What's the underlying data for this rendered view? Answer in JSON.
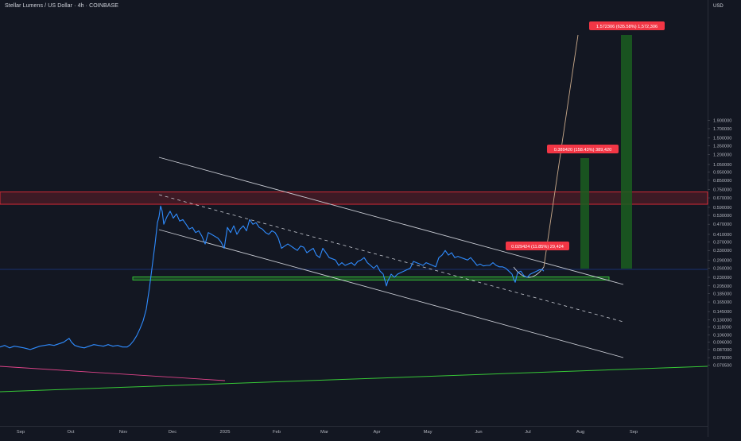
{
  "header": {
    "title": "Stellar Lumens / US Dollar · 4h · COINBASE",
    "currency": "USD"
  },
  "colors": {
    "background": "#131722",
    "price_line": "#2f8cff",
    "red_zone": "#ff2e3a",
    "green": "#37c837",
    "profit_bar": "#1b5e20",
    "label_red": "#f23645",
    "trend_lines": "#c8cbd3",
    "pink_line": "#e0448a",
    "blue_hline": "#2962ff",
    "projection": "#c9a98a"
  },
  "chart_data": {
    "type": "line",
    "y_scale": "log",
    "ylim": [
      0.068,
      2.2
    ],
    "x_ticks": [
      "Sep",
      "Oct",
      "Nov",
      "Dec",
      "2025",
      "Feb",
      "Mar",
      "Apr",
      "May",
      "Jun",
      "Jul",
      "Aug",
      "Sep"
    ],
    "y_ticks": [
      "0.070500",
      "0.078000",
      "0.087000",
      "0.096000",
      "0.106000",
      "0.118000",
      "0.130000",
      "0.145000",
      "0.165000",
      "0.185000",
      "0.205000",
      "0.230000",
      "0.260000",
      "0.290000",
      "0.330000",
      "0.370000",
      "0.410000",
      "0.470000",
      "0.530000",
      "0.590000",
      "0.670000",
      "0.750000",
      "0.850000",
      "0.950000",
      "1.050000",
      "1.200000",
      "1.350000",
      "1.500000",
      "1.700000",
      "1.900000"
    ],
    "series": [
      {
        "type": "line",
        "points": [
          [
            0,
            0.09
          ],
          [
            6,
            0.092
          ],
          [
            12,
            0.089
          ],
          [
            18,
            0.091
          ],
          [
            24,
            0.09
          ],
          [
            30,
            0.089
          ],
          [
            34,
            0.088
          ],
          [
            38,
            0.087
          ],
          [
            44,
            0.089
          ],
          [
            50,
            0.091
          ],
          [
            56,
            0.092
          ],
          [
            62,
            0.093
          ],
          [
            68,
            0.092
          ],
          [
            74,
            0.094
          ],
          [
            80,
            0.096
          ],
          [
            84,
            0.099
          ],
          [
            87,
            0.101
          ],
          [
            90,
            0.096
          ],
          [
            94,
            0.092
          ],
          [
            100,
            0.09
          ],
          [
            106,
            0.089
          ],
          [
            112,
            0.091
          ],
          [
            118,
            0.093
          ],
          [
            124,
            0.092
          ],
          [
            130,
            0.091
          ],
          [
            136,
            0.093
          ],
          [
            142,
            0.091
          ],
          [
            148,
            0.092
          ],
          [
            154,
            0.09
          ],
          [
            160,
            0.09
          ],
          [
            164,
            0.093
          ],
          [
            168,
            0.098
          ],
          [
            172,
            0.105
          ],
          [
            176,
            0.115
          ],
          [
            180,
            0.128
          ],
          [
            184,
            0.15
          ],
          [
            188,
            0.2
          ],
          [
            192,
            0.28
          ],
          [
            195,
            0.36
          ],
          [
            198,
            0.48
          ],
          [
            200,
            0.52
          ],
          [
            202,
            0.6
          ],
          [
            204,
            0.56
          ],
          [
            206,
            0.47
          ],
          [
            210,
            0.52
          ],
          [
            214,
            0.56
          ],
          [
            218,
            0.51
          ],
          [
            222,
            0.54
          ],
          [
            226,
            0.49
          ],
          [
            230,
            0.5
          ],
          [
            234,
            0.47
          ],
          [
            238,
            0.44
          ],
          [
            242,
            0.45
          ],
          [
            246,
            0.42
          ],
          [
            250,
            0.43
          ],
          [
            254,
            0.4
          ],
          [
            258,
            0.36
          ],
          [
            262,
            0.42
          ],
          [
            266,
            0.41
          ],
          [
            270,
            0.4
          ],
          [
            274,
            0.39
          ],
          [
            278,
            0.37
          ],
          [
            282,
            0.34
          ],
          [
            286,
            0.45
          ],
          [
            290,
            0.42
          ],
          [
            294,
            0.46
          ],
          [
            298,
            0.41
          ],
          [
            302,
            0.44
          ],
          [
            306,
            0.46
          ],
          [
            310,
            0.43
          ],
          [
            314,
            0.5
          ],
          [
            318,
            0.47
          ],
          [
            322,
            0.48
          ],
          [
            326,
            0.45
          ],
          [
            330,
            0.44
          ],
          [
            334,
            0.42
          ],
          [
            338,
            0.41
          ],
          [
            342,
            0.43
          ],
          [
            346,
            0.42
          ],
          [
            350,
            0.39
          ],
          [
            354,
            0.34
          ],
          [
            358,
            0.35
          ],
          [
            362,
            0.36
          ],
          [
            366,
            0.35
          ],
          [
            370,
            0.34
          ],
          [
            374,
            0.33
          ],
          [
            378,
            0.35
          ],
          [
            382,
            0.345
          ],
          [
            386,
            0.32
          ],
          [
            390,
            0.33
          ],
          [
            394,
            0.34
          ],
          [
            398,
            0.31
          ],
          [
            402,
            0.3
          ],
          [
            406,
            0.34
          ],
          [
            410,
            0.32
          ],
          [
            414,
            0.3
          ],
          [
            418,
            0.295
          ],
          [
            422,
            0.29
          ],
          [
            426,
            0.27
          ],
          [
            430,
            0.28
          ],
          [
            434,
            0.27
          ],
          [
            438,
            0.275
          ],
          [
            442,
            0.28
          ],
          [
            446,
            0.27
          ],
          [
            450,
            0.285
          ],
          [
            454,
            0.29
          ],
          [
            458,
            0.3
          ],
          [
            462,
            0.28
          ],
          [
            466,
            0.27
          ],
          [
            470,
            0.26
          ],
          [
            474,
            0.27
          ],
          [
            478,
            0.25
          ],
          [
            482,
            0.24
          ],
          [
            486,
            0.205
          ],
          [
            488,
            0.22
          ],
          [
            492,
            0.24
          ],
          [
            496,
            0.23
          ],
          [
            500,
            0.24
          ],
          [
            504,
            0.245
          ],
          [
            508,
            0.25
          ],
          [
            512,
            0.255
          ],
          [
            516,
            0.26
          ],
          [
            520,
            0.285
          ],
          [
            524,
            0.28
          ],
          [
            528,
            0.275
          ],
          [
            532,
            0.27
          ],
          [
            536,
            0.28
          ],
          [
            540,
            0.275
          ],
          [
            544,
            0.27
          ],
          [
            548,
            0.265
          ],
          [
            552,
            0.3
          ],
          [
            556,
            0.31
          ],
          [
            560,
            0.33
          ],
          [
            564,
            0.31
          ],
          [
            568,
            0.32
          ],
          [
            572,
            0.3
          ],
          [
            576,
            0.305
          ],
          [
            580,
            0.3
          ],
          [
            584,
            0.295
          ],
          [
            588,
            0.29
          ],
          [
            592,
            0.3
          ],
          [
            596,
            0.285
          ],
          [
            600,
            0.27
          ],
          [
            604,
            0.275
          ],
          [
            608,
            0.268
          ],
          [
            612,
            0.27
          ],
          [
            616,
            0.27
          ],
          [
            620,
            0.28
          ],
          [
            624,
            0.27
          ],
          [
            628,
            0.265
          ],
          [
            632,
            0.265
          ],
          [
            636,
            0.26
          ],
          [
            640,
            0.25
          ],
          [
            644,
            0.24
          ],
          [
            646,
            0.225
          ],
          [
            648,
            0.215
          ],
          [
            651,
            0.245
          ],
          [
            655,
            0.25
          ],
          [
            659,
            0.235
          ],
          [
            663,
            0.23
          ],
          [
            667,
            0.24
          ],
          [
            671,
            0.245
          ],
          [
            675,
            0.25
          ],
          [
            679,
            0.255
          ],
          [
            682,
            0.255
          ],
          [
            684,
            0.25
          ]
        ]
      }
    ],
    "annotations": [
      {
        "text": "0.029424 (11.85%) 29,424"
      },
      {
        "text": "0.389420 (158.43%) 389,420"
      },
      {
        "text": "1.572306 (635.58%) 1,572,306"
      }
    ],
    "resistance_zone": [
      0.615,
      0.725
    ],
    "support_zone": [
      0.223,
      0.23
    ],
    "current_price": 0.248
  }
}
